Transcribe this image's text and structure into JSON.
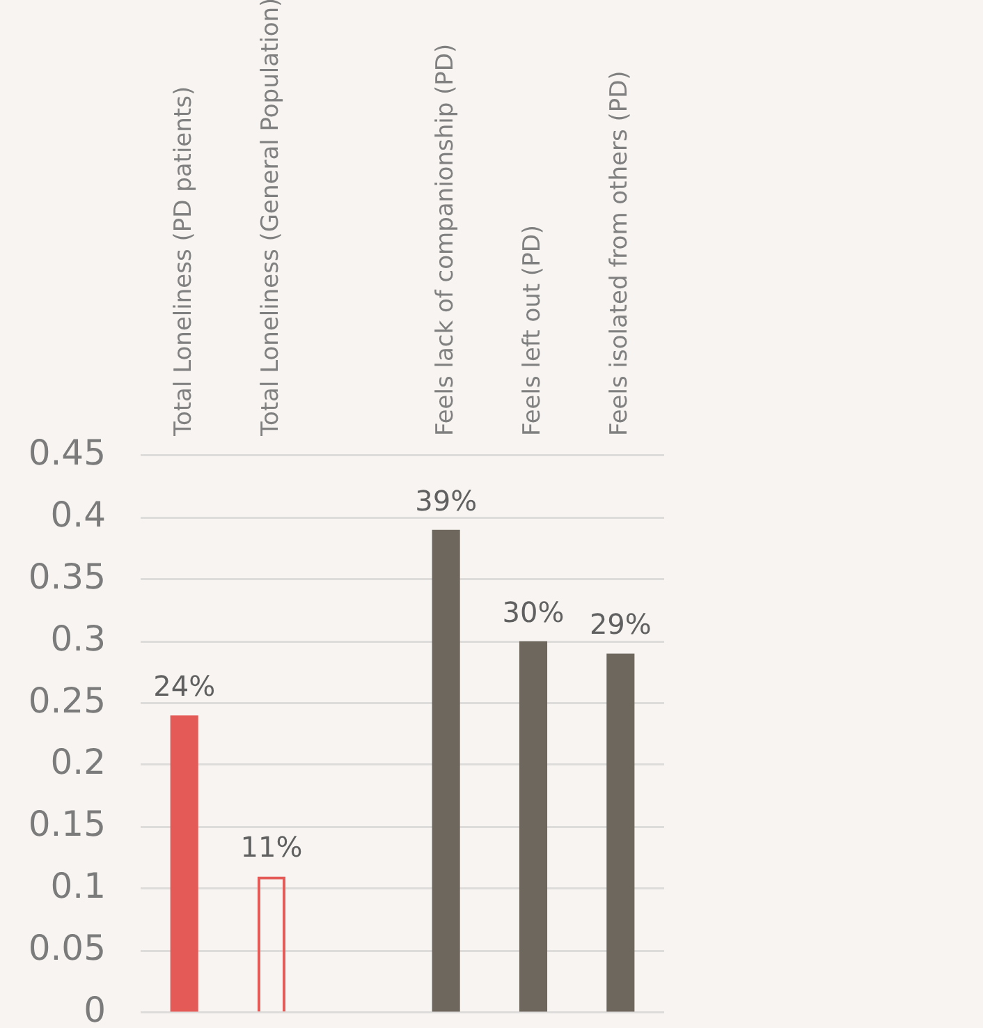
{
  "chart_data": {
    "type": "bar",
    "categories": [
      "Total Loneliness (PD patients)",
      "Total Loneliness (General Population)",
      null,
      "Feels lack of companionship (PD)",
      "Feels left out (PD)",
      "Feels isolated from others (PD)"
    ],
    "values": [
      0.24,
      0.11,
      null,
      0.39,
      0.3,
      0.29
    ],
    "colors": [
      "#e45a57",
      "#e45a57",
      "#6e675e",
      "#6e675e",
      "#6e675e",
      "#6e675e"
    ],
    "value_labels": [
      "24%",
      "11%",
      null,
      "39%",
      "30%",
      "29%"
    ],
    "ylim": [
      0,
      0.45
    ],
    "yticks": [
      0,
      0.05,
      0.1,
      0.15,
      0.2,
      0.25,
      0.3,
      0.35,
      0.4,
      0.45
    ],
    "grid": "y"
  }
}
